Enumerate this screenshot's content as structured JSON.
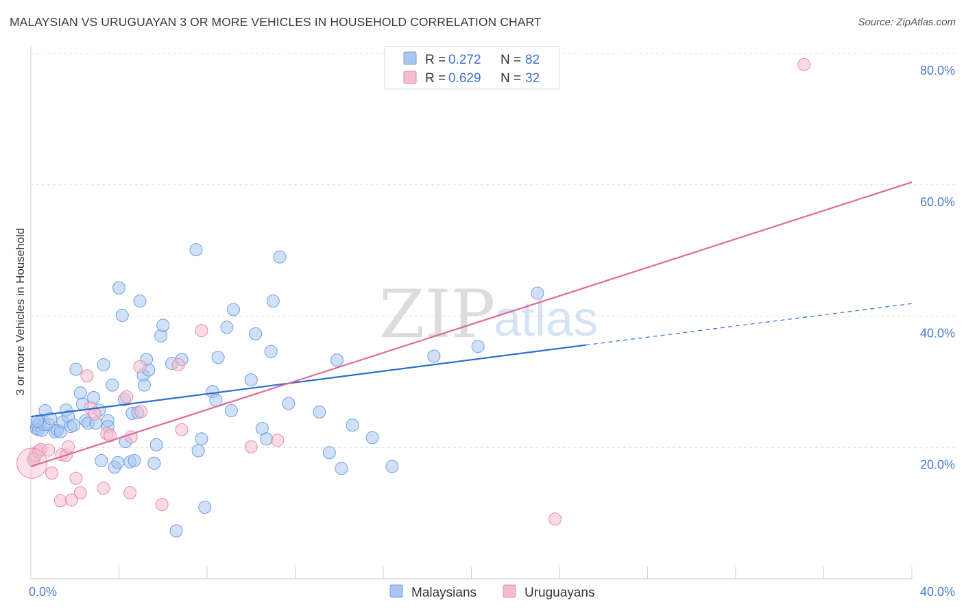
{
  "title": "MALAYSIAN VS URUGUAYAN 3 OR MORE VEHICLES IN HOUSEHOLD CORRELATION CHART",
  "source": "Source: ZipAtlas.com",
  "watermark": {
    "zip": "ZIP",
    "atlas": "atlas"
  },
  "colors": {
    "malaysians_fill": "#a9c6f0",
    "malaysians_stroke": "#6f9ee0",
    "malaysians_line": "#2a6dd0",
    "uruguayans_fill": "#f6bdd0",
    "uruguayans_stroke": "#e68aa8",
    "uruguayans_line": "#e06a95",
    "grid": "#dddddd",
    "tick_label": "#4a7bd0"
  },
  "legend": {
    "rows": [
      {
        "r_label": "R = ",
        "r_value": "0.272",
        "n_label": "N = ",
        "n_value": "82"
      },
      {
        "r_label": "R = ",
        "r_value": "0.629",
        "n_label": "N = ",
        "n_value": "32"
      }
    ],
    "bottom": [
      "Malaysians",
      "Uruguayans"
    ]
  },
  "chart_data": {
    "type": "scatter",
    "title": "MALAYSIAN VS URUGUAYAN 3 OR MORE VEHICLES IN HOUSEHOLD CORRELATION CHART",
    "xlabel": "",
    "ylabel": "3 or more Vehicles in Household",
    "xlim": [
      0,
      40
    ],
    "ylim": [
      0,
      80
    ],
    "x_tick_labels": [
      "0.0%",
      "40.0%"
    ],
    "y_tick_values": [
      20,
      40,
      60,
      80
    ],
    "y_tick_labels": [
      "20.0%",
      "40.0%",
      "60.0%",
      "80.0%"
    ],
    "grid": true,
    "legend_position": "top-center",
    "series": [
      {
        "name": "Malaysians",
        "R": 0.272,
        "N": 82,
        "trend": {
          "x": [
            0,
            25.2
          ],
          "y": [
            24.7,
            35.6
          ],
          "dashed_to": {
            "x": 40,
            "y": 41.9
          }
        },
        "points": [
          [
            0.25,
            22.9
          ],
          [
            0.3,
            23.4
          ],
          [
            0.35,
            22.7
          ],
          [
            0.4,
            23.8
          ],
          [
            0.5,
            22.6
          ],
          [
            0.6,
            23.5
          ],
          [
            0.65,
            25.6
          ],
          [
            0.8,
            23.5
          ],
          [
            0.9,
            24.4
          ],
          [
            1.1,
            22.4
          ],
          [
            1.2,
            22.6
          ],
          [
            1.35,
            22.4
          ],
          [
            1.45,
            23.9
          ],
          [
            1.6,
            25.7
          ],
          [
            1.7,
            24.7
          ],
          [
            1.8,
            23.2
          ],
          [
            1.95,
            23.4
          ],
          [
            2.05,
            31.9
          ],
          [
            2.25,
            28.3
          ],
          [
            2.35,
            26.6
          ],
          [
            2.5,
            24.1
          ],
          [
            2.6,
            23.7
          ],
          [
            2.85,
            27.6
          ],
          [
            2.95,
            23.7
          ],
          [
            3.1,
            25.7
          ],
          [
            3.2,
            18.0
          ],
          [
            3.3,
            32.6
          ],
          [
            3.5,
            24.1
          ],
          [
            3.5,
            23.2
          ],
          [
            3.7,
            29.5
          ],
          [
            3.8,
            17.0
          ],
          [
            3.95,
            17.7
          ],
          [
            4.0,
            44.3
          ],
          [
            4.15,
            40.1
          ],
          [
            4.25,
            27.3
          ],
          [
            4.3,
            20.9
          ],
          [
            4.5,
            17.8
          ],
          [
            4.6,
            25.2
          ],
          [
            4.7,
            18.0
          ],
          [
            4.85,
            25.3
          ],
          [
            4.95,
            42.3
          ],
          [
            5.1,
            31.0
          ],
          [
            5.15,
            29.5
          ],
          [
            5.25,
            33.4
          ],
          [
            5.35,
            31.8
          ],
          [
            5.6,
            17.6
          ],
          [
            5.7,
            20.4
          ],
          [
            5.9,
            37.0
          ],
          [
            6.0,
            38.6
          ],
          [
            6.4,
            32.8
          ],
          [
            6.6,
            7.3
          ],
          [
            6.85,
            33.4
          ],
          [
            7.5,
            50.1
          ],
          [
            7.6,
            19.5
          ],
          [
            7.75,
            21.3
          ],
          [
            7.9,
            10.9
          ],
          [
            8.25,
            28.5
          ],
          [
            8.4,
            27.2
          ],
          [
            8.5,
            33.7
          ],
          [
            8.9,
            38.3
          ],
          [
            9.1,
            25.6
          ],
          [
            9.2,
            41.0
          ],
          [
            10.0,
            30.3
          ],
          [
            10.2,
            37.3
          ],
          [
            10.5,
            22.9
          ],
          [
            10.7,
            21.3
          ],
          [
            10.9,
            34.6
          ],
          [
            11.0,
            42.3
          ],
          [
            11.3,
            49.0
          ],
          [
            11.7,
            26.7
          ],
          [
            13.1,
            25.4
          ],
          [
            13.55,
            19.2
          ],
          [
            13.9,
            33.3
          ],
          [
            14.1,
            16.8
          ],
          [
            14.6,
            23.4
          ],
          [
            15.5,
            21.5
          ],
          [
            16.4,
            17.1
          ],
          [
            18.3,
            33.9
          ],
          [
            20.3,
            35.4
          ],
          [
            23.0,
            43.5
          ],
          [
            0.15,
            18.3
          ],
          [
            0.3,
            24.0
          ]
        ]
      },
      {
        "name": "Uruguayans",
        "R": 0.629,
        "N": 32,
        "trend": {
          "x": [
            0,
            40
          ],
          "y": [
            17.1,
            60.4
          ]
        },
        "points": [
          [
            0.1,
            18.1
          ],
          [
            0.2,
            18.8
          ],
          [
            0.35,
            19.4
          ],
          [
            0.45,
            19.7
          ],
          [
            0.8,
            19.6
          ],
          [
            0.95,
            16.1
          ],
          [
            1.35,
            11.9
          ],
          [
            1.4,
            18.9
          ],
          [
            1.6,
            18.8
          ],
          [
            1.7,
            20.1
          ],
          [
            1.85,
            12.0
          ],
          [
            2.05,
            15.3
          ],
          [
            2.25,
            13.1
          ],
          [
            2.55,
            30.9
          ],
          [
            2.7,
            26.0
          ],
          [
            2.9,
            25.1
          ],
          [
            3.3,
            13.8
          ],
          [
            3.45,
            22.1
          ],
          [
            3.6,
            21.8
          ],
          [
            4.35,
            27.7
          ],
          [
            4.55,
            21.6
          ],
          [
            4.5,
            13.1
          ],
          [
            4.95,
            32.3
          ],
          [
            5.0,
            25.5
          ],
          [
            5.95,
            11.3
          ],
          [
            6.7,
            32.6
          ],
          [
            6.85,
            22.7
          ],
          [
            7.75,
            37.8
          ],
          [
            10.0,
            20.1
          ],
          [
            11.2,
            21.1
          ],
          [
            23.8,
            9.1
          ],
          [
            35.1,
            78.3
          ]
        ]
      }
    ]
  }
}
